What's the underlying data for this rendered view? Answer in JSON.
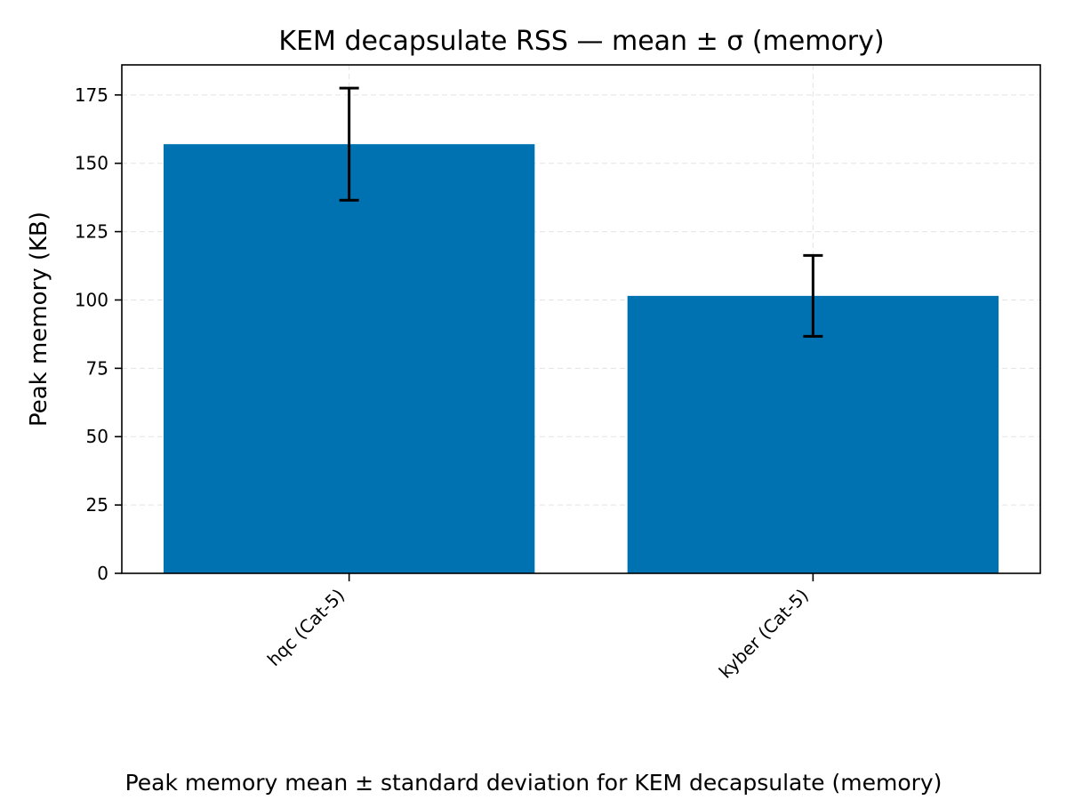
{
  "chart_data": {
    "type": "bar",
    "title": "KEM decapsulate RSS — mean ± σ (memory)",
    "xlabel": "",
    "ylabel": "Peak memory (KB)",
    "caption": "Peak memory mean ± standard deviation for KEM decapsulate (memory)",
    "categories": [
      "hqc (Cat-5)",
      "kyber (Cat-5)"
    ],
    "values": [
      157,
      101.5
    ],
    "errors": [
      20.5,
      14.8
    ],
    "ylim": [
      0,
      186
    ],
    "yticks": [
      0,
      25,
      50,
      75,
      100,
      125,
      150,
      175
    ],
    "grid": true,
    "bar_color": "#0072b2",
    "error_color": "#000000"
  }
}
